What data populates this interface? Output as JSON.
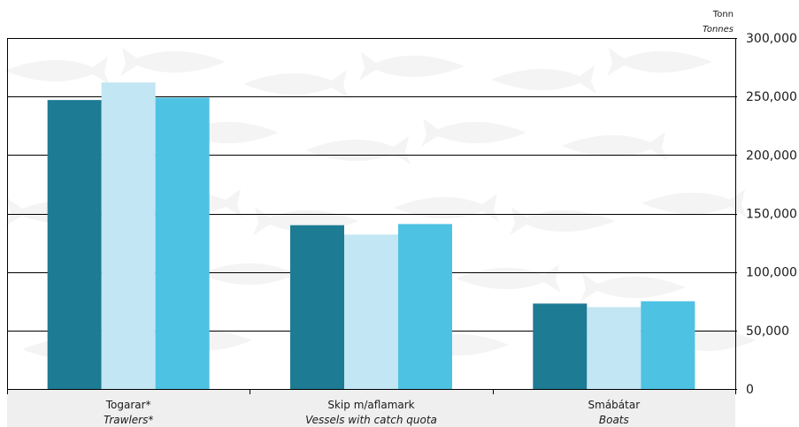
{
  "chart_data": {
    "type": "bar",
    "categories": [
      {
        "label": "Togarar*",
        "label_en": "Trawlers*"
      },
      {
        "label": "Skip m/aflamark",
        "label_en": "Vessels with catch quota"
      },
      {
        "label": "Smábátar",
        "label_en": "Boats"
      }
    ],
    "series": [
      {
        "values": [
          247000,
          140000,
          73000
        ],
        "color": "#1d7b94"
      },
      {
        "values": [
          262000,
          132000,
          70000
        ],
        "color": "#c2e6f3"
      },
      {
        "values": [
          249000,
          141000,
          75000
        ],
        "color": "#4ec2e2"
      }
    ],
    "ylabel": "Tonn",
    "ylabel_en": "Tonnes",
    "ylim": [
      0,
      300000
    ],
    "yticks": [
      0,
      50000,
      100000,
      150000,
      200000,
      250000,
      300000
    ],
    "ytick_labels": [
      "0",
      "50,000",
      "100,000",
      "150,000",
      "200,000",
      "250,000",
      "300,000"
    ],
    "grid": true,
    "y_axis_side": "right",
    "legend": "none",
    "colors": {
      "gridline": "#000000",
      "category_band": "#efefef",
      "background_fish": "#f4f4f4"
    }
  }
}
